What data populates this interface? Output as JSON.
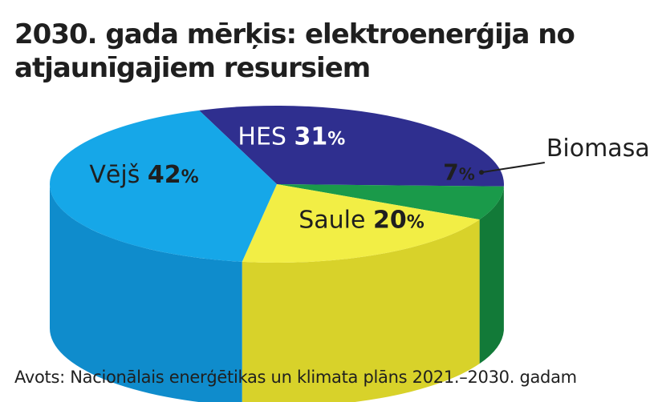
{
  "chart_data": {
    "type": "pie",
    "title_line1": "2030. gada mērķis: elektroenerģija no",
    "title_line2": "atjaunīgajiem resursiem",
    "unit": "%",
    "slices": [
      {
        "name": "HES",
        "value": 31,
        "color": "#2f2f8f",
        "side_color": "#242477"
      },
      {
        "name": "Biomasa",
        "value": 7,
        "color": "#1a9a4a",
        "side_color": "#127a38"
      },
      {
        "name": "Saule",
        "value": 20,
        "color": "#f2ee45",
        "side_color": "#d8d22a"
      },
      {
        "name": "Vējš",
        "value": 42,
        "color": "#16a7e8",
        "side_color": "#0f8ccc"
      }
    ]
  },
  "source": "Avots: Nacionālais enerģētikas un klimata plāns 2021.–2030. gadam"
}
